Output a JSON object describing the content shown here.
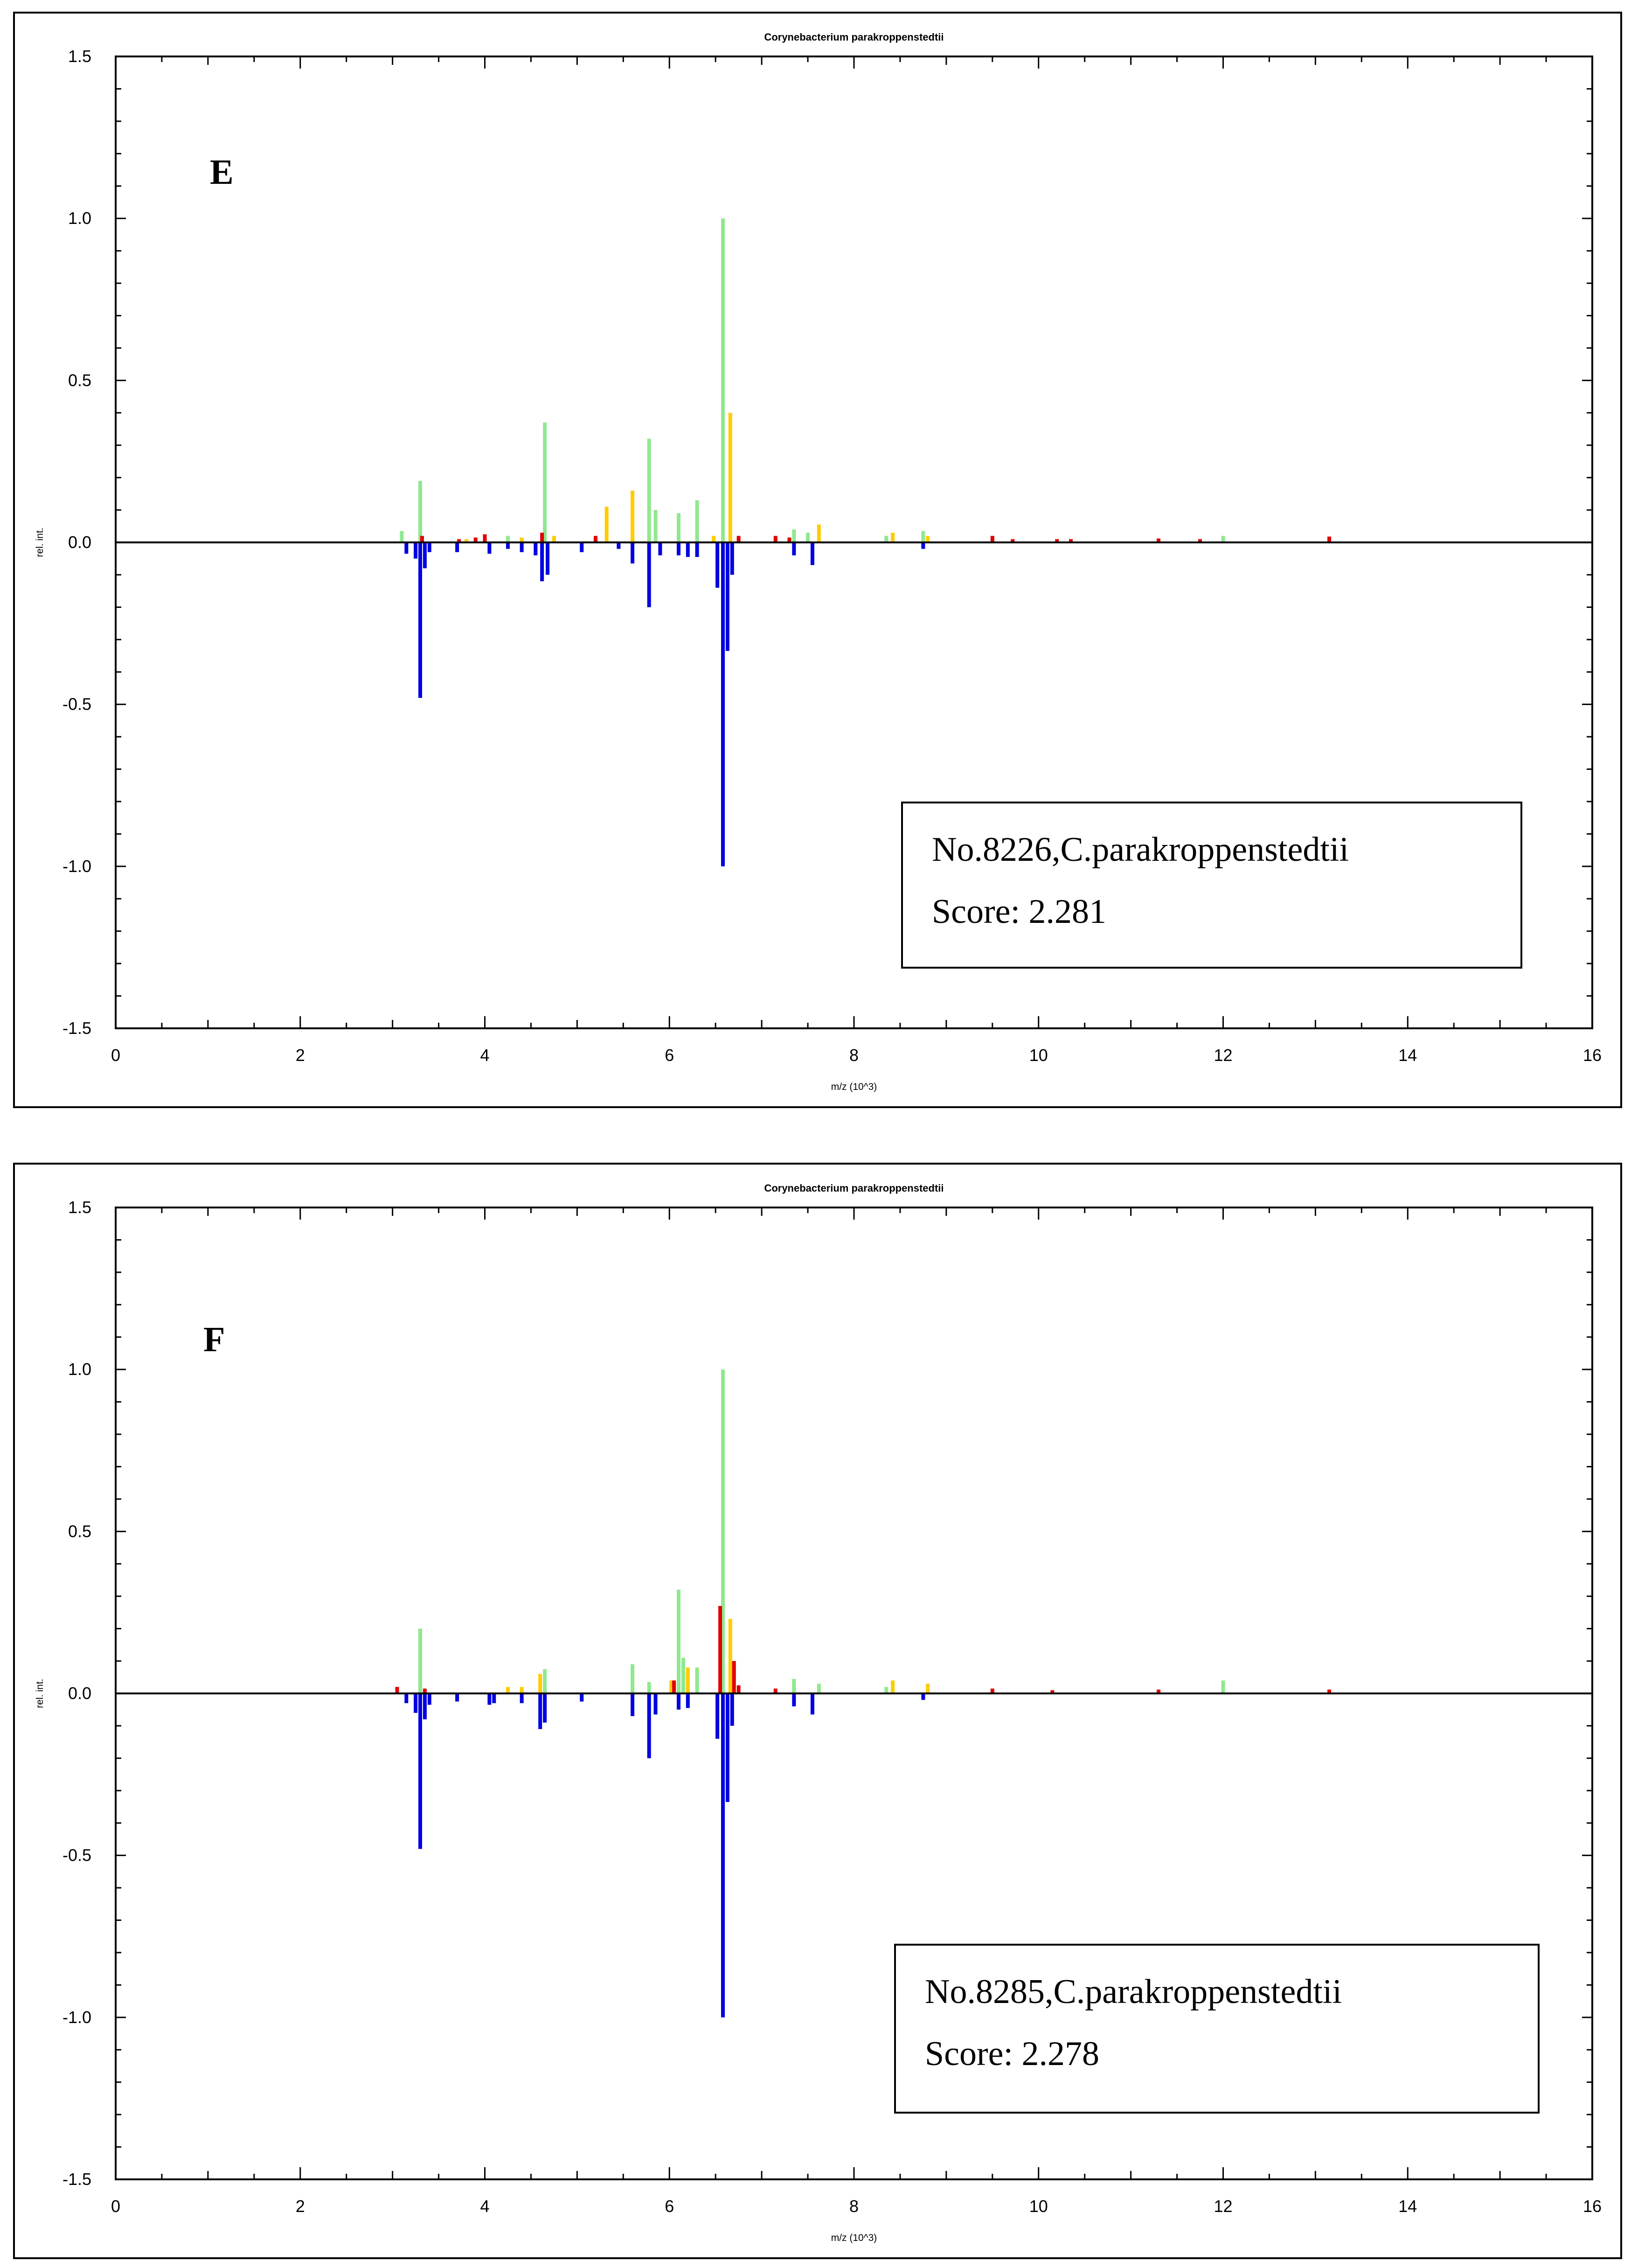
{
  "colors": {
    "green": "#90e890",
    "yellow": "#ffcc00",
    "red": "#e00000",
    "blue": "#0000e0"
  },
  "chart_data": [
    {
      "type": "bar",
      "title": "Corynebacterium parakroppenstedtii",
      "panel_label": "E",
      "xlabel": "m/z (10^3)",
      "ylabel": "rel. int.",
      "xlim": [
        0,
        16
      ],
      "ylim": [
        -1.5,
        1.5
      ],
      "xticks": [
        "0",
        "2",
        "4",
        "6",
        "8",
        "10",
        "12",
        "14",
        "16"
      ],
      "yticks": [
        "1.5",
        "1.0",
        "0.5",
        "0.0",
        "-0.5",
        "-1.0",
        "-1.5"
      ],
      "info_line1": "No.8226,C.parakroppenstedtii",
      "info_line2": "Score: 2.281",
      "series": [
        {
          "name": "green",
          "color": "green",
          "x": [
            3.1,
            3.3,
            4.25,
            4.65,
            5.6,
            5.78,
            5.85,
            6.1,
            6.3,
            6.58,
            7.35,
            7.5,
            8.35,
            8.75,
            12.0
          ],
          "values": [
            0.035,
            0.19,
            0.02,
            0.37,
            0.03,
            0.32,
            0.1,
            0.09,
            0.13,
            1.0,
            0.04,
            0.03,
            0.02,
            0.035,
            0.02
          ]
        },
        {
          "name": "yellow",
          "color": "yellow",
          "x": [
            3.8,
            4.4,
            4.75,
            5.32,
            5.6,
            6.48,
            6.66,
            7.62,
            8.42,
            8.8
          ],
          "values": [
            0.01,
            0.015,
            0.02,
            0.11,
            0.16,
            0.02,
            0.4,
            0.055,
            0.03,
            0.02
          ]
        },
        {
          "name": "red",
          "color": "red",
          "x": [
            3.32,
            3.72,
            3.9,
            4.0,
            4.62,
            5.2,
            6.75,
            7.15,
            7.3,
            9.5,
            9.72,
            10.2,
            10.35,
            11.3,
            11.75,
            13.15
          ],
          "values": [
            0.02,
            0.01,
            0.015,
            0.025,
            0.03,
            0.02,
            0.02,
            0.02,
            0.015,
            0.02,
            0.01,
            0.01,
            0.01,
            0.012,
            0.01,
            0.018
          ]
        },
        {
          "name": "blue",
          "color": "blue",
          "x": [
            3.15,
            3.25,
            3.3,
            3.35,
            3.4,
            3.7,
            4.05,
            4.25,
            4.4,
            4.55,
            4.62,
            4.68,
            5.05,
            5.45,
            5.6,
            5.78,
            5.9,
            6.1,
            6.2,
            6.3,
            6.52,
            6.58,
            6.63,
            6.68,
            7.35,
            7.55,
            8.75
          ],
          "values": [
            -0.035,
            -0.05,
            -0.48,
            -0.08,
            -0.03,
            -0.03,
            -0.035,
            -0.02,
            -0.03,
            -0.04,
            -0.12,
            -0.1,
            -0.03,
            -0.02,
            -0.065,
            -0.2,
            -0.04,
            -0.04,
            -0.045,
            -0.045,
            -0.14,
            -1.0,
            -0.335,
            -0.1,
            -0.04,
            -0.07,
            -0.02
          ]
        }
      ]
    },
    {
      "type": "bar",
      "title": "Corynebacterium parakroppenstedtii",
      "panel_label": "F",
      "xlabel": "m/z (10^3)",
      "ylabel": "rel. int.",
      "xlim": [
        0,
        16
      ],
      "ylim": [
        -1.5,
        1.5
      ],
      "xticks": [
        "0",
        "2",
        "4",
        "6",
        "8",
        "10",
        "12",
        "14",
        "16"
      ],
      "yticks": [
        "1.5",
        "1.0",
        "0.5",
        "0.0",
        "-0.5",
        "-1.0",
        "-1.5"
      ],
      "info_line1": "No.8285,C.parakroppenstedtii",
      "info_line2": "Score: 2.278",
      "series": [
        {
          "name": "green",
          "color": "green",
          "x": [
            3.3,
            4.65,
            5.6,
            5.78,
            6.1,
            6.15,
            6.3,
            6.58,
            7.35,
            7.62,
            8.35,
            12.0
          ],
          "values": [
            0.2,
            0.075,
            0.09,
            0.035,
            0.32,
            0.11,
            0.08,
            1.0,
            0.045,
            0.03,
            0.02,
            0.04
          ]
        },
        {
          "name": "yellow",
          "color": "yellow",
          "x": [
            4.25,
            4.4,
            4.6,
            6.02,
            6.2,
            6.66,
            8.42,
            8.8
          ],
          "values": [
            0.02,
            0.02,
            0.06,
            0.04,
            0.08,
            0.23,
            0.04,
            0.03
          ]
        },
        {
          "name": "red",
          "color": "red",
          "x": [
            3.05,
            3.35,
            6.05,
            6.55,
            6.7,
            6.75,
            7.15,
            9.5,
            10.15,
            11.3,
            13.15
          ],
          "values": [
            0.02,
            0.015,
            0.04,
            0.27,
            0.1,
            0.025,
            0.015,
            0.015,
            0.01,
            0.012,
            0.012
          ]
        },
        {
          "name": "blue",
          "color": "blue",
          "x": [
            3.15,
            3.25,
            3.3,
            3.35,
            3.4,
            3.7,
            4.05,
            4.1,
            4.4,
            4.6,
            4.65,
            5.05,
            5.6,
            5.78,
            5.85,
            6.1,
            6.2,
            6.52,
            6.58,
            6.63,
            6.68,
            7.35,
            7.55,
            8.75
          ],
          "values": [
            -0.03,
            -0.06,
            -0.48,
            -0.08,
            -0.035,
            -0.025,
            -0.035,
            -0.03,
            -0.03,
            -0.11,
            -0.09,
            -0.025,
            -0.07,
            -0.2,
            -0.065,
            -0.05,
            -0.045,
            -0.14,
            -1.0,
            -0.335,
            -0.1,
            -0.04,
            -0.065,
            -0.02
          ]
        }
      ]
    }
  ]
}
